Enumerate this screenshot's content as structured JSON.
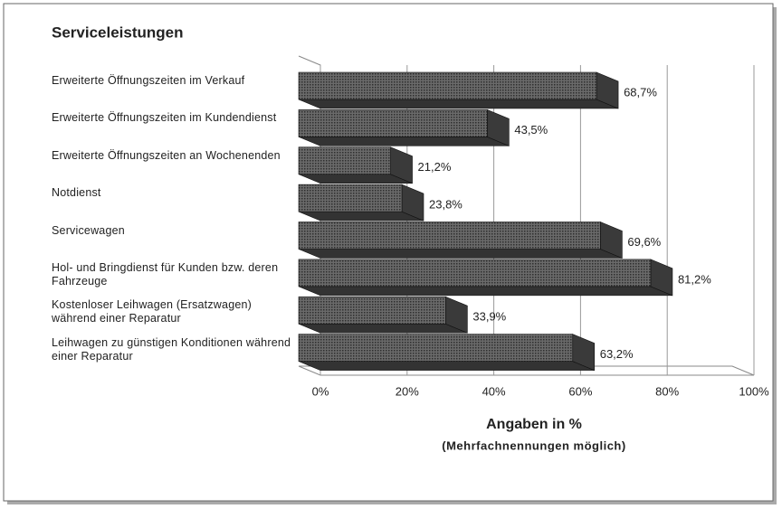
{
  "chart_data": {
    "type": "bar",
    "orientation": "horizontal",
    "title": "Serviceleistungen",
    "categories": [
      "Erweiterte Öffnungszeiten im Verkauf",
      "Erweiterte Öffnungszeiten im Kundendienst",
      "Erweiterte Öffnungszeiten an Wochenenden",
      "Notdienst",
      "Servicewagen",
      "Hol- und Bringdienst für Kunden bzw. deren Fahrzeuge",
      "Kostenloser Leihwagen (Ersatzwagen) während einer Reparatur",
      "Leihwagen zu günstigen Konditionen während einer Reparatur"
    ],
    "values": [
      68.7,
      43.5,
      21.2,
      23.8,
      69.6,
      81.2,
      33.9,
      63.2
    ],
    "value_labels": [
      "68,7%",
      "43,5%",
      "21,2%",
      "23,8%",
      "69,6%",
      "81,2%",
      "33,9%",
      "63,2%"
    ],
    "color": "#5a5a5a",
    "xlim": [
      0,
      100
    ],
    "xticks": [
      {
        "value": 0,
        "label": "0%"
      },
      {
        "value": 20,
        "label": "20%"
      },
      {
        "value": 40,
        "label": "40%"
      },
      {
        "value": 60,
        "label": "60%"
      },
      {
        "value": 80,
        "label": "80%"
      },
      {
        "value": 100,
        "label": "100%"
      }
    ],
    "xlabel": "Angaben in %",
    "xlabel_note": "(Mehrfachnennungen möglich)",
    "grid": true
  }
}
